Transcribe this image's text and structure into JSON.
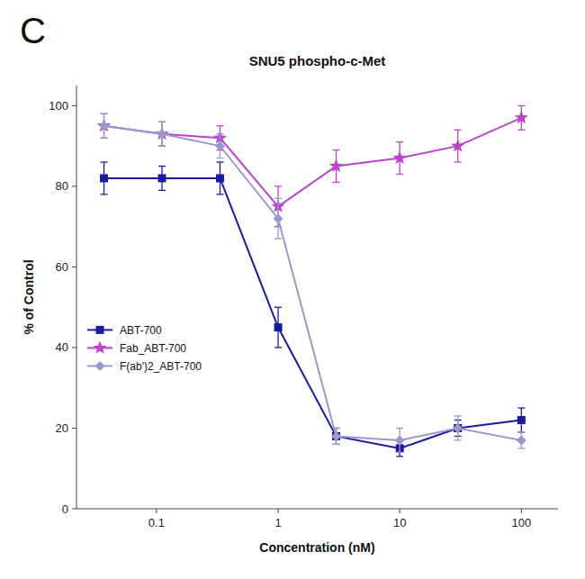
{
  "chart_data": {
    "type": "line",
    "title": "SNU5 phospho-c-Met",
    "annotations": [
      "C"
    ],
    "x_label": "Concentration (nM)",
    "y_label": "% of Control",
    "log": "x",
    "grid": false,
    "legend": "lower left",
    "xlim": [
      0.022,
      200
    ],
    "xticks": [
      0.1,
      1,
      10,
      100
    ],
    "ylim": [
      0,
      105
    ],
    "yticks": [
      0,
      20,
      40,
      60,
      80,
      100
    ],
    "x": [
      0.037,
      0.111,
      0.333,
      1.0,
      3.0,
      10.0,
      30.0,
      100.0
    ],
    "series": [
      {
        "name": "ABT-700",
        "color": "#1a1a9e",
        "marker": "square",
        "values": [
          82,
          82,
          82,
          45,
          18,
          15,
          20,
          22
        ],
        "errors": [
          4,
          3,
          4,
          5,
          2,
          2,
          2,
          3
        ]
      },
      {
        "name": "Fab_ABT-700",
        "color": "#bb44cc",
        "marker": "star",
        "values": [
          95,
          93,
          92,
          75,
          85,
          87,
          90,
          97
        ],
        "errors": [
          3,
          3,
          3,
          5,
          4,
          4,
          4,
          3
        ]
      },
      {
        "name": "F(ab')2_ABT-700",
        "color": "#9999cc",
        "marker": "diamond",
        "values": [
          95,
          93,
          90,
          72,
          18,
          17,
          20,
          17
        ],
        "errors": [
          3,
          3,
          3,
          5,
          2,
          3,
          3,
          2
        ]
      }
    ]
  }
}
